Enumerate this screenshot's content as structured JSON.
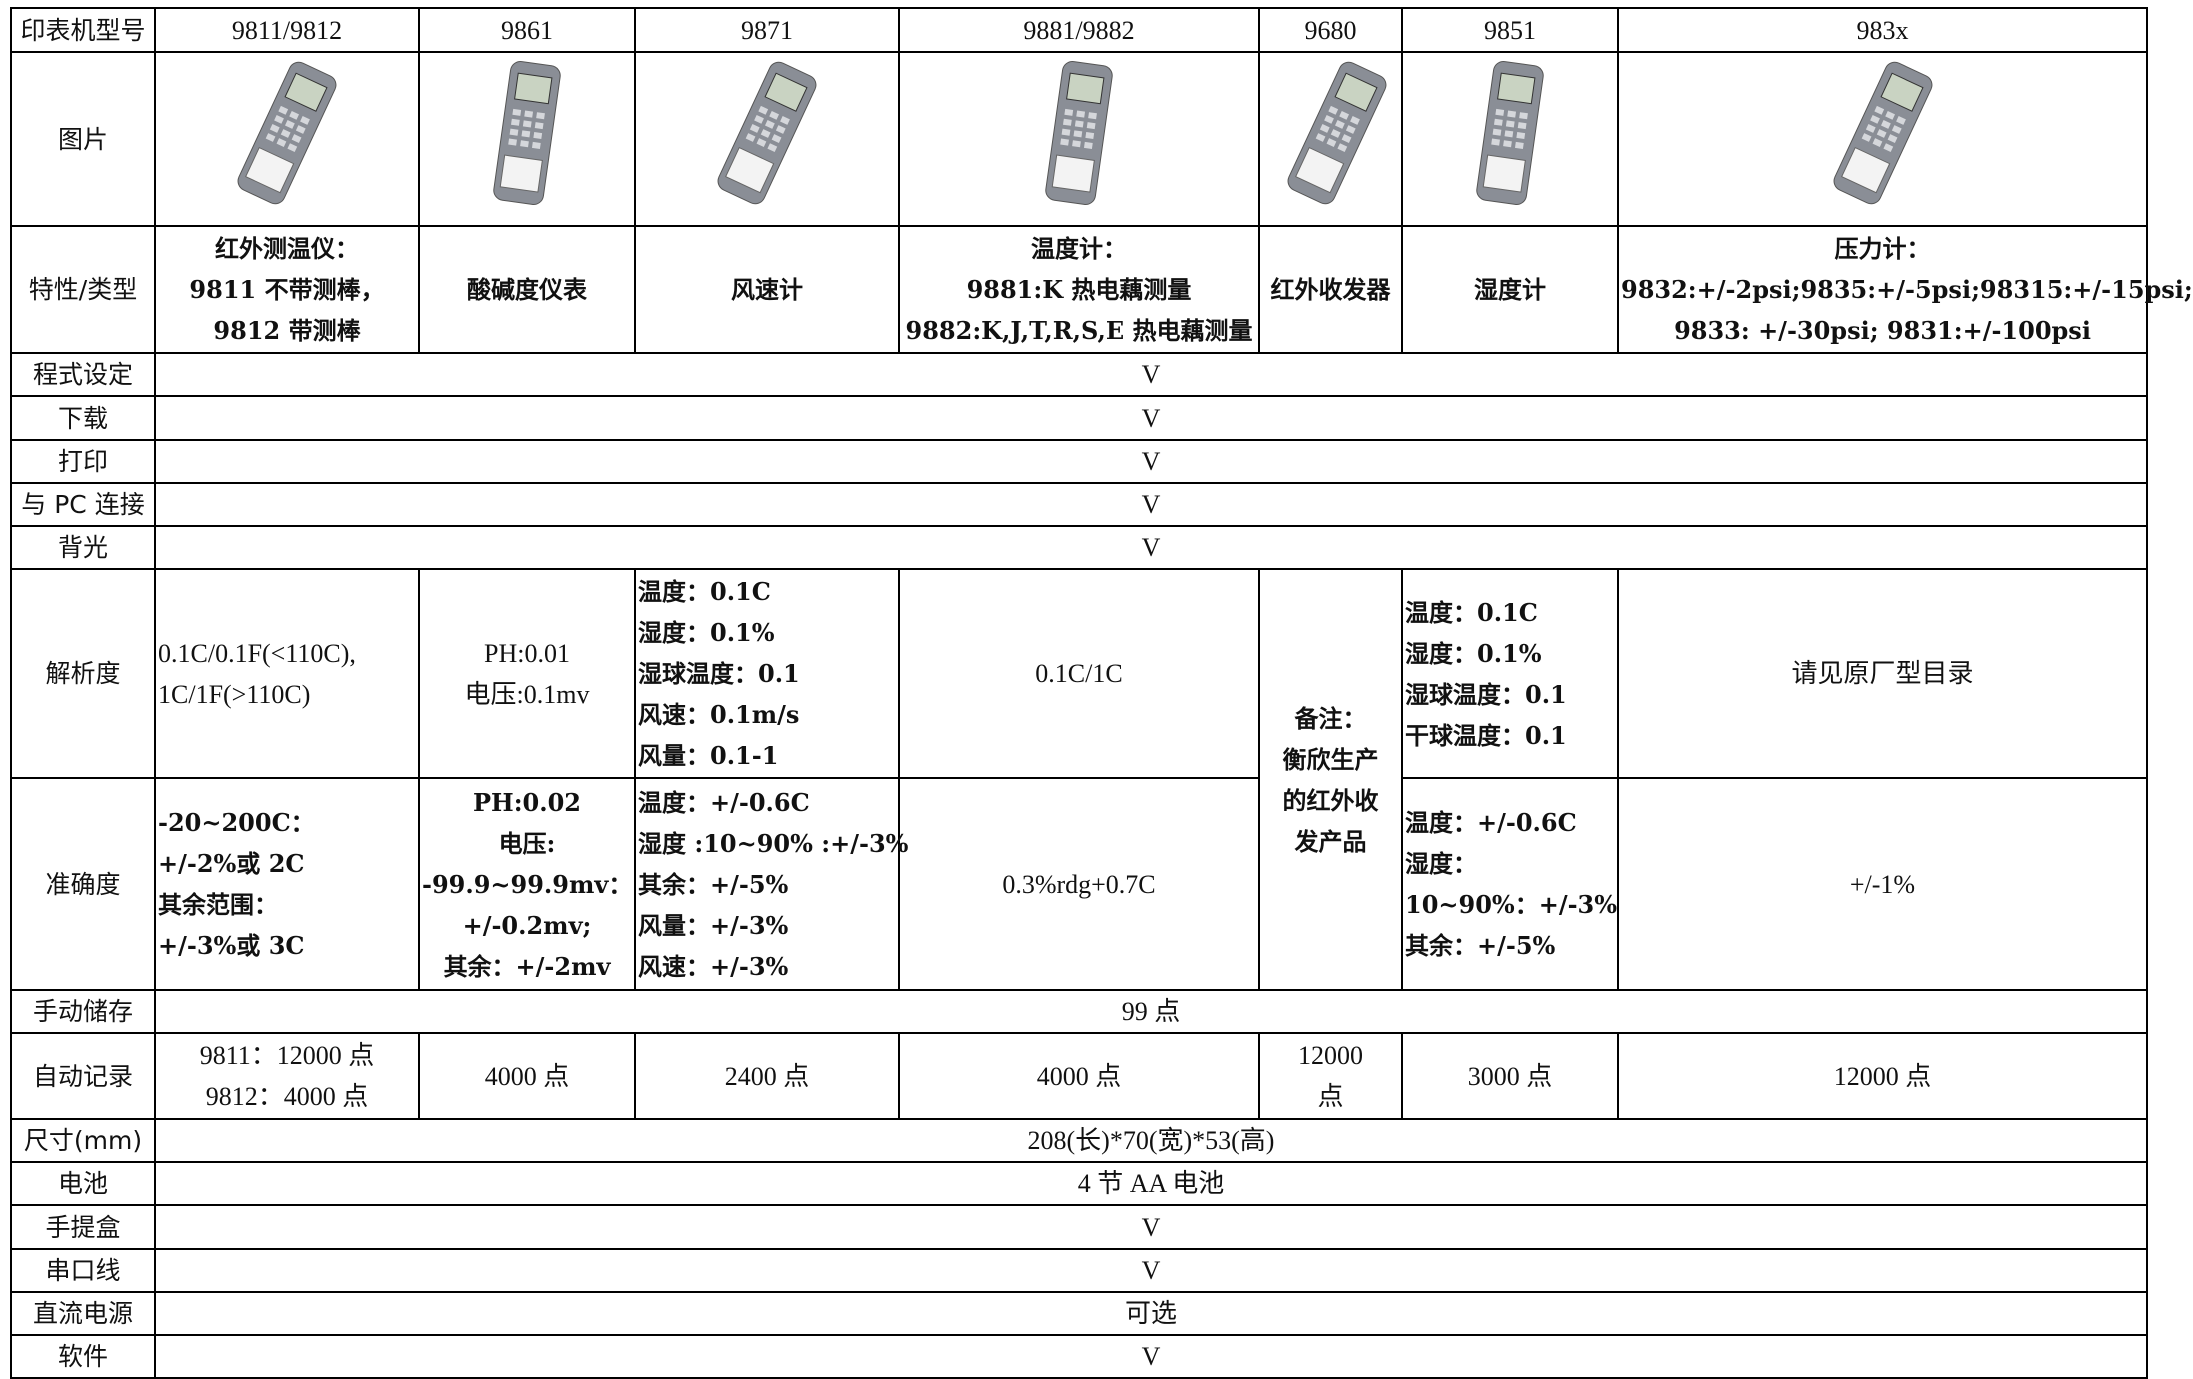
{
  "table": {
    "header": [
      "印表机型号",
      "9811/9812",
      "9861",
      "9871",
      "9881/9882",
      "9680",
      "9851",
      "983x"
    ],
    "image_label": "图片",
    "rows": [
      {
        "label": "特性/类型",
        "cells": [
          {
            "lines": [
              "红外测温仪：",
              "9811 不带测棒，",
              "9812 带测棒"
            ],
            "bold": true
          },
          {
            "lines": [
              "酸碱度仪表"
            ],
            "bold": true
          },
          {
            "lines": [
              "风速计"
            ],
            "bold": true
          },
          {
            "lines": [
              "温度计：",
              "9881:K 热电藕测量",
              "9882:K,J,T,R,S,E 热电藕测量"
            ],
            "bold": true
          },
          {
            "lines": [
              "红外收发器"
            ],
            "bold": true
          },
          {
            "lines": [
              "湿度计"
            ],
            "bold": true
          },
          {
            "lines": [
              "压力计：",
              "9832:+/-2psi;9835:+/-5psi;98315:+/-15psi;",
              "9833: +/-30psi; 9831:+/-100psi"
            ],
            "bold": true
          }
        ]
      },
      {
        "label": "程式设定",
        "cells": [
          {
            "lines": [
              "V"
            ]
          }
        ]
      },
      {
        "label": "下载",
        "cells": [
          {
            "lines": [
              "V"
            ]
          }
        ]
      },
      {
        "label": "打印",
        "cells": [
          {
            "lines": [
              "V"
            ]
          }
        ]
      },
      {
        "label": "与 PC 连接",
        "cells": [
          {
            "lines": [
              "V"
            ]
          }
        ]
      },
      {
        "label": "背光",
        "cells": [
          {
            "lines": [
              "V"
            ]
          }
        ]
      },
      {
        "label": "解析度",
        "cells": [
          {
            "lines": [
              "0.1C/0.1F(<110C),",
              "1C/1F(>110C)"
            ],
            "align": "left"
          },
          {
            "lines": [
              "PH:0.01",
              "电压:0.1mv"
            ]
          },
          {
            "lines": [
              "温度：0.1C",
              "湿度：0.1%",
              "湿球温度：0.1",
              "风速：0.1m/s",
              "风量：0.1-1"
            ],
            "bold": true,
            "align": "left"
          },
          {
            "lines": [
              "0.1C/1C"
            ]
          },
          {
            "lines": [
              "备注：",
              "衡欣生产",
              "的红外收",
              "发产品"
            ],
            "bold": true
          },
          {
            "lines": [
              "温度：0.1C",
              "湿度：0.1%",
              "湿球温度：0.1",
              "干球温度：0.1"
            ],
            "bold": true,
            "align": "left"
          },
          {
            "lines": [
              "请见原厂型目录"
            ]
          }
        ]
      },
      {
        "label": "准确度",
        "cells": [
          {
            "lines": [
              "-20~200C：",
              "+/-2%或 2C",
              "其余范围：",
              "+/-3%或 3C"
            ],
            "bold": true,
            "align": "left"
          },
          {
            "lines": [
              "PH:0.02",
              "电压:",
              "-99.9~99.9mv：",
              "+/-0.2mv;",
              "其余：+/-2mv"
            ],
            "bold": true
          },
          {
            "lines": [
              "温度：+/-0.6C",
              "湿度 :10~90% :+/-3%",
              "其余：+/-5%",
              "风量：+/-3%",
              "风速：+/-3%"
            ],
            "bold": true,
            "align": "left"
          },
          {
            "lines": [
              "0.3%rdg+0.7C"
            ]
          },
          {
            "lines": [
              "温度：+/-0.6C",
              "湿度：",
              "10~90%：+/-3%",
              "其余：+/-5%"
            ],
            "bold": true,
            "align": "left"
          },
          {
            "lines": [
              "+/-1%"
            ]
          }
        ]
      },
      {
        "label": "手动储存",
        "cells": [
          {
            "lines": [
              "99 点"
            ]
          }
        ]
      },
      {
        "label": "自动记录",
        "cells": [
          {
            "lines": [
              "9811：12000 点",
              "9812：4000 点"
            ]
          },
          {
            "lines": [
              "4000 点"
            ]
          },
          {
            "lines": [
              "2400 点"
            ]
          },
          {
            "lines": [
              "4000 点"
            ]
          },
          {
            "lines": [
              "12000",
              "点"
            ]
          },
          {
            "lines": [
              "3000 点"
            ]
          },
          {
            "lines": [
              "12000 点"
            ]
          }
        ]
      },
      {
        "label": "尺寸(mm)",
        "cells": [
          {
            "lines": [
              "208(长)*70(宽)*53(高)"
            ]
          }
        ]
      },
      {
        "label": "电池",
        "cells": [
          {
            "lines": [
              "4 节 AA 电池"
            ]
          }
        ]
      },
      {
        "label": "手提盒",
        "cells": [
          {
            "lines": [
              "V"
            ]
          }
        ]
      },
      {
        "label": "串口线",
        "cells": [
          {
            "lines": [
              "V"
            ]
          }
        ]
      },
      {
        "label": "直流电源",
        "cells": [
          {
            "lines": [
              "可选"
            ]
          }
        ]
      },
      {
        "label": "软件",
        "cells": [
          {
            "lines": [
              "V"
            ]
          }
        ]
      }
    ]
  }
}
